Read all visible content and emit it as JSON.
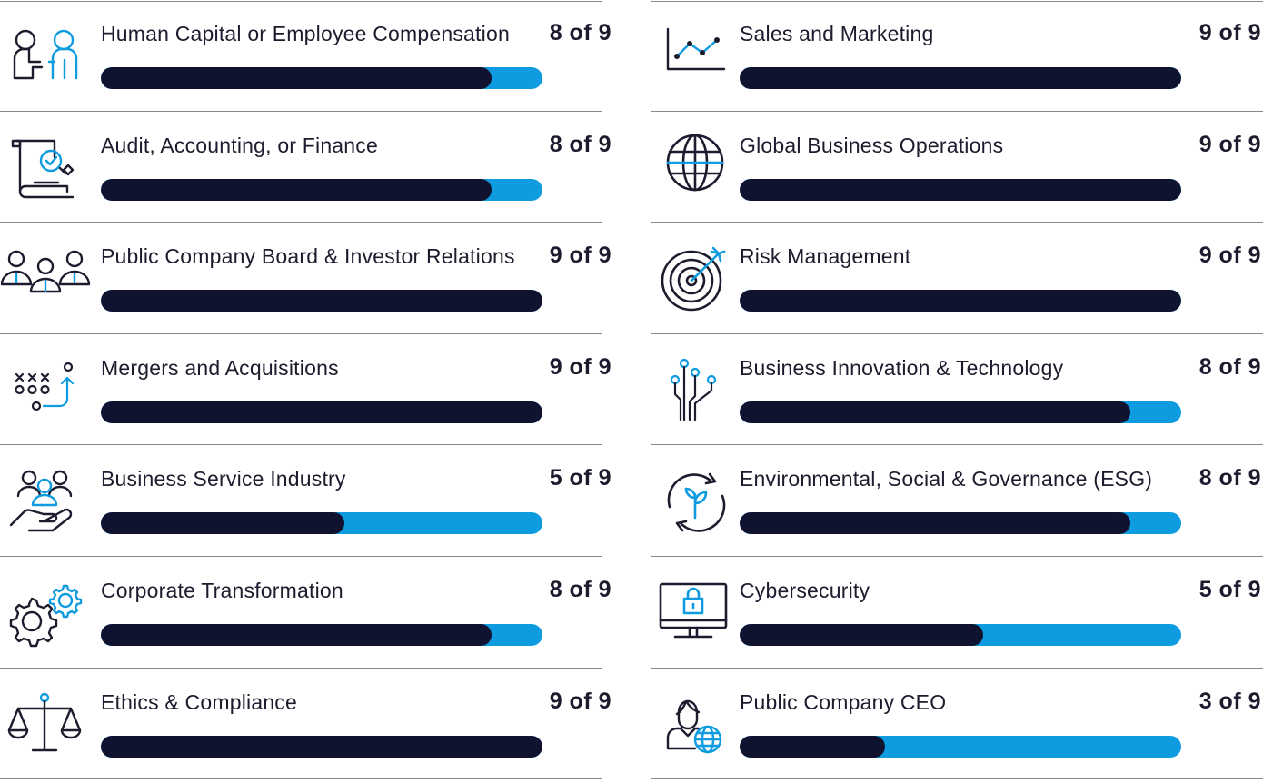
{
  "colors": {
    "bar_dark": "#10132f",
    "bar_blue": "#0e9be0",
    "icon_dark": "#1c1c2e",
    "icon_blue": "#0e9be0"
  },
  "left": [
    {
      "icon": "handshake-people-icon",
      "label": "Human Capital or Employee Compensation",
      "score": "8 of 9",
      "value": 8,
      "max": 9
    },
    {
      "icon": "audit-document-icon",
      "label": "Audit, Accounting, or Finance",
      "score": "8 of 9",
      "value": 8,
      "max": 9
    },
    {
      "icon": "board-group-icon",
      "label": "Public Company Board & Investor Relations",
      "score": "9 of 9",
      "value": 9,
      "max": 9
    },
    {
      "icon": "strategy-play-icon",
      "label": "Mergers and Acquisitions",
      "score": "9 of 9",
      "value": 9,
      "max": 9
    },
    {
      "icon": "people-hand-icon",
      "label": "Business Service Industry",
      "score": "5 of 9",
      "value": 5,
      "max": 9
    },
    {
      "icon": "gears-icon",
      "label": "Corporate Transformation",
      "score": "8 of 9",
      "value": 8,
      "max": 9
    },
    {
      "icon": "scales-icon",
      "label": "Ethics & Compliance",
      "score": "9 of 9",
      "value": 9,
      "max": 9
    }
  ],
  "right": [
    {
      "icon": "line-chart-icon",
      "label": "Sales and Marketing",
      "score": "9 of 9",
      "value": 9,
      "max": 9
    },
    {
      "icon": "globe-icon",
      "label": "Global Business Operations",
      "score": "9 of 9",
      "value": 9,
      "max": 9
    },
    {
      "icon": "target-icon",
      "label": "Risk Management",
      "score": "9 of 9",
      "value": 9,
      "max": 9
    },
    {
      "icon": "circuit-icon",
      "label": "Business Innovation & Technology",
      "score": "8 of 9",
      "value": 8,
      "max": 9
    },
    {
      "icon": "sprout-cycle-icon",
      "label": "Environmental, Social & Governance (ESG)",
      "score": "8 of 9",
      "value": 8,
      "max": 9
    },
    {
      "icon": "monitor-lock-icon",
      "label": "Cybersecurity",
      "score": "5 of 9",
      "value": 5,
      "max": 9
    },
    {
      "icon": "person-globe-icon",
      "label": "Public Company CEO",
      "score": "3 of 9",
      "value": 3,
      "max": 9
    }
  ]
}
